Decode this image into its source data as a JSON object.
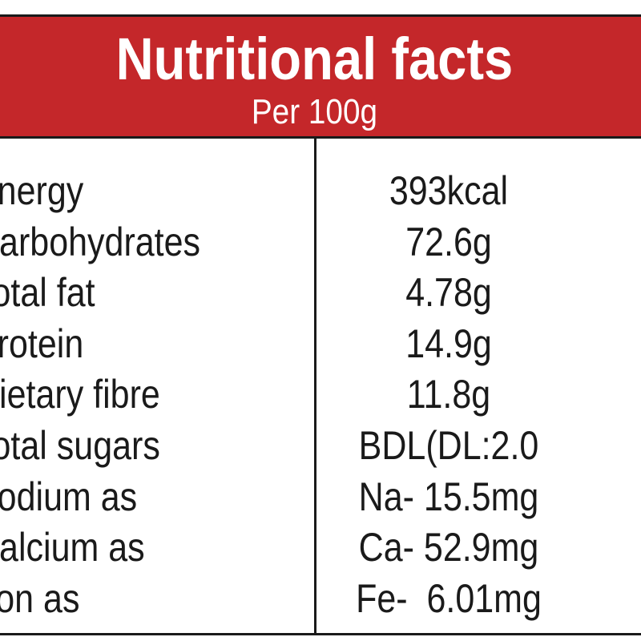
{
  "header": {
    "title": "Nutritional facts",
    "subtitle": "Per 100g"
  },
  "rows": [
    {
      "label": "Energy",
      "value": "393kcal"
    },
    {
      "label": "Carbohydrates",
      "value": "72.6g"
    },
    {
      "label": "Total fat",
      "value": "4.78g"
    },
    {
      "label": "Protein",
      "value": "14.9g"
    },
    {
      "label": "Dietary fibre",
      "value": "11.8g"
    },
    {
      "label": "Total sugars",
      "value": "BDL(DL:2.0"
    },
    {
      "label": "Sodium as",
      "value": "Na- 15.5mg"
    },
    {
      "label": "Calcium as",
      "value": "Ca- 52.9mg"
    },
    {
      "label": "Iron  as",
      "value": "Fe-  6.01mg"
    }
  ],
  "colors": {
    "header_bg": "#c4272a",
    "header_text": "#ffffff",
    "body_text": "#1a1a1a",
    "rule": "#1a1a1a"
  }
}
